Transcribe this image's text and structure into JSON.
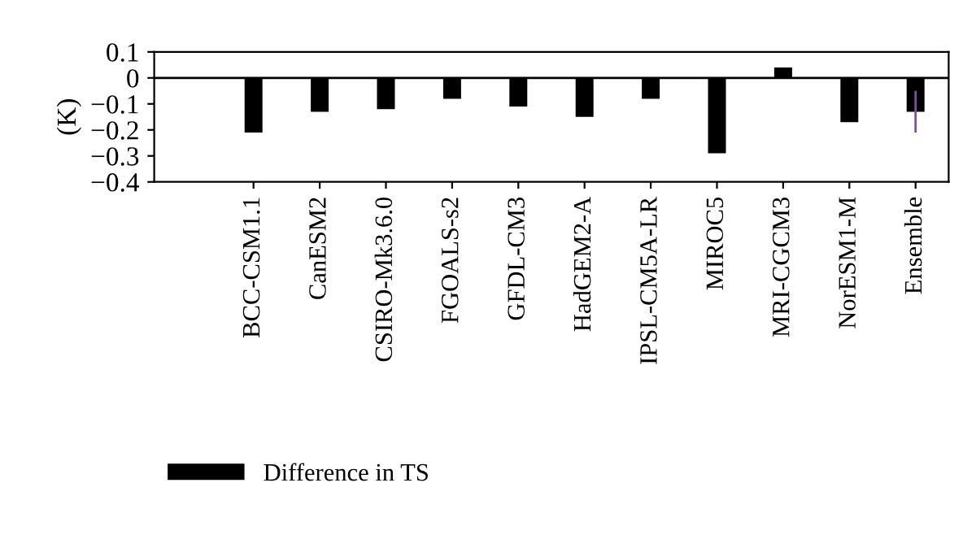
{
  "chart_data": {
    "type": "bar",
    "ylabel": "(K)",
    "categories": [
      "BCC-CSM1.1",
      "CanESM2",
      "CSIRO-Mk3.6.0",
      "FGOALS-s2",
      "GFDL-CM3",
      "HadGEM2-A",
      "IPSL-CM5A-LR",
      "MIROC5",
      "MRI-CGCM3",
      "NorESM1-M",
      "Ensemble"
    ],
    "series": [
      {
        "name": "Difference in TS",
        "color": "#000000",
        "values": [
          -0.21,
          -0.13,
          -0.12,
          -0.08,
          -0.11,
          -0.15,
          -0.08,
          -0.29,
          0.04,
          -0.17,
          -0.13
        ],
        "errors": [
          null,
          null,
          null,
          null,
          null,
          null,
          null,
          null,
          null,
          null,
          0.08
        ]
      }
    ],
    "ylim": [
      -0.4,
      0.1
    ],
    "yticks": [
      {
        "value": -0.4,
        "label": "−0.4"
      },
      {
        "value": -0.3,
        "label": "−0.3"
      },
      {
        "value": -0.2,
        "label": "−0.2"
      },
      {
        "value": -0.1,
        "label": "−0.1"
      },
      0,
      0.1
    ],
    "ref_lines": [
      {
        "axis": "y",
        "value": 0,
        "color": "#000000"
      }
    ],
    "grid": false,
    "legend": "bottom left"
  }
}
